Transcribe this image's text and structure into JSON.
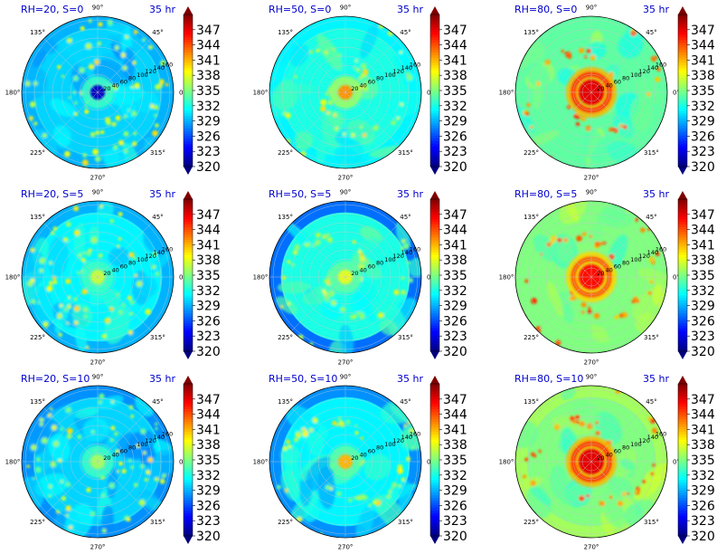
{
  "chart_data": {
    "type": "heatmap",
    "layout": {
      "rows": 3,
      "cols": 3
    },
    "projection": "polar",
    "time_label": "35 hr",
    "angle_ticks": [
      "0°",
      "45°",
      "90°",
      "135°",
      "180°",
      "225°",
      "270°",
      "315°"
    ],
    "radial_ticks": [
      "20",
      "40",
      "60",
      "80",
      "100",
      "120",
      "140",
      "160"
    ],
    "colorbar": {
      "colormap": "jet",
      "range": [
        320,
        350
      ],
      "ticks": [
        "347",
        "344",
        "341",
        "338",
        "335",
        "332",
        "329",
        "326",
        "323",
        "320"
      ],
      "extend": "both"
    },
    "panels": [
      {
        "title": "RH=20, S=0",
        "rh": 20,
        "s": 0,
        "center_value": 322,
        "core_value": 333,
        "background_value": 330,
        "outer_value": 329,
        "feature": "scattered-cells"
      },
      {
        "title": "RH=50, S=0",
        "rh": 50,
        "s": 0,
        "center_value": 342,
        "core_value": 336,
        "background_value": 332,
        "outer_value": 331,
        "feature": "spiral-bands"
      },
      {
        "title": "RH=80, S=0",
        "rh": 80,
        "s": 0,
        "center_value": 347,
        "core_value": 341,
        "background_value": 334,
        "outer_value": 334,
        "feature": "strong-core"
      },
      {
        "title": "RH=20, S=5",
        "rh": 20,
        "s": 5,
        "center_value": 337,
        "core_value": 333,
        "background_value": 331,
        "outer_value": 329,
        "feature": "scattered-cells"
      },
      {
        "title": "RH=50, S=5",
        "rh": 50,
        "s": 5,
        "center_value": 338,
        "core_value": 334,
        "background_value": 332,
        "outer_value": 327,
        "feature": "spiral-bands"
      },
      {
        "title": "RH=80, S=5",
        "rh": 80,
        "s": 5,
        "center_value": 346,
        "core_value": 340,
        "background_value": 335,
        "outer_value": 335,
        "feature": "strong-core"
      },
      {
        "title": "RH=20, S=10",
        "rh": 20,
        "s": 10,
        "center_value": 336,
        "core_value": 333,
        "background_value": 330,
        "outer_value": 328,
        "feature": "scattered-cells"
      },
      {
        "title": "RH=50, S=10",
        "rh": 50,
        "s": 10,
        "center_value": 341,
        "core_value": 334,
        "background_value": 331,
        "outer_value": 328,
        "feature": "spiral-bands"
      },
      {
        "title": "RH=80, S=10",
        "rh": 80,
        "s": 10,
        "center_value": 347,
        "core_value": 341,
        "background_value": 335,
        "outer_value": 336,
        "feature": "strong-core"
      }
    ]
  }
}
